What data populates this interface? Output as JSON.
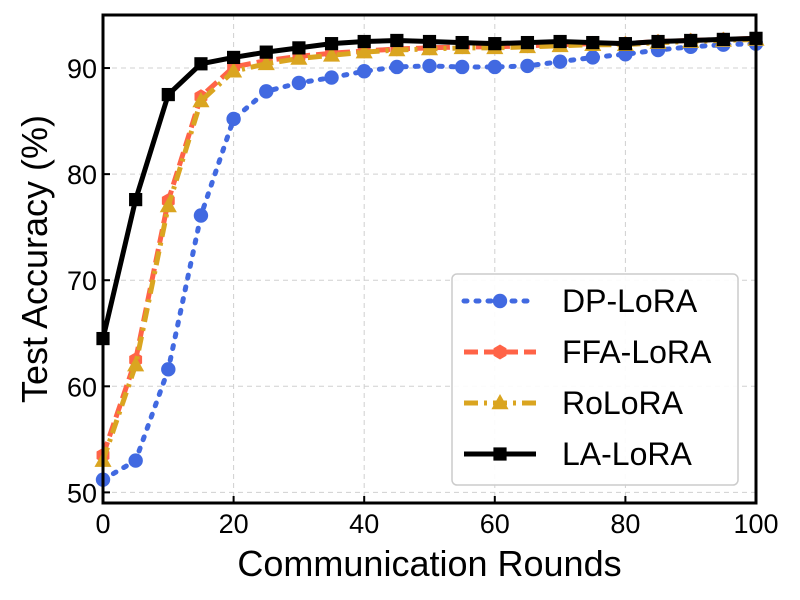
{
  "chart_data": {
    "type": "line",
    "title": "",
    "xlabel": "Communication Rounds",
    "ylabel": "Test Accuracy (%)",
    "xlim": [
      0,
      100
    ],
    "ylim": [
      49,
      95
    ],
    "xticks": [
      0,
      20,
      40,
      60,
      80,
      100
    ],
    "yticks": [
      50,
      60,
      70,
      80,
      90
    ],
    "grid": true,
    "legend_position": "lower-right",
    "x": [
      0,
      5,
      10,
      15,
      20,
      25,
      30,
      35,
      40,
      45,
      50,
      55,
      60,
      65,
      70,
      75,
      80,
      85,
      90,
      95,
      100
    ],
    "series": [
      {
        "name": "DP-LoRA",
        "color": "#4169E1",
        "line_style": "dotted",
        "marker": "circle",
        "values": [
          51.2,
          53.0,
          61.6,
          76.1,
          85.2,
          87.8,
          88.6,
          89.1,
          89.7,
          90.1,
          90.2,
          90.1,
          90.1,
          90.2,
          90.6,
          91.0,
          91.3,
          91.7,
          92.0,
          92.2,
          92.3
        ]
      },
      {
        "name": "FFA-LoRA",
        "color": "#FF6347",
        "line_style": "dashed",
        "marker": "hexagon",
        "values": [
          53.5,
          62.5,
          77.5,
          87.3,
          90.1,
          90.7,
          91.1,
          91.4,
          91.6,
          91.8,
          91.9,
          92.0,
          92.0,
          92.1,
          92.2,
          92.3,
          92.3,
          92.5,
          92.6,
          92.7,
          92.8
        ]
      },
      {
        "name": "RoLoRA",
        "color": "#DAA520",
        "line_style": "dashdot",
        "marker": "triangle",
        "values": [
          53.0,
          62.0,
          77.0,
          86.9,
          89.7,
          90.4,
          90.9,
          91.2,
          91.5,
          91.7,
          91.8,
          91.9,
          91.9,
          92.0,
          92.1,
          92.2,
          92.2,
          92.4,
          92.5,
          92.6,
          92.7
        ]
      },
      {
        "name": "LA-LoRA",
        "color": "#000000",
        "line_style": "solid",
        "marker": "square",
        "values": [
          64.5,
          77.6,
          87.5,
          90.4,
          91.0,
          91.5,
          91.9,
          92.3,
          92.5,
          92.6,
          92.5,
          92.4,
          92.3,
          92.4,
          92.5,
          92.4,
          92.3,
          92.5,
          92.6,
          92.7,
          92.8
        ]
      }
    ]
  }
}
